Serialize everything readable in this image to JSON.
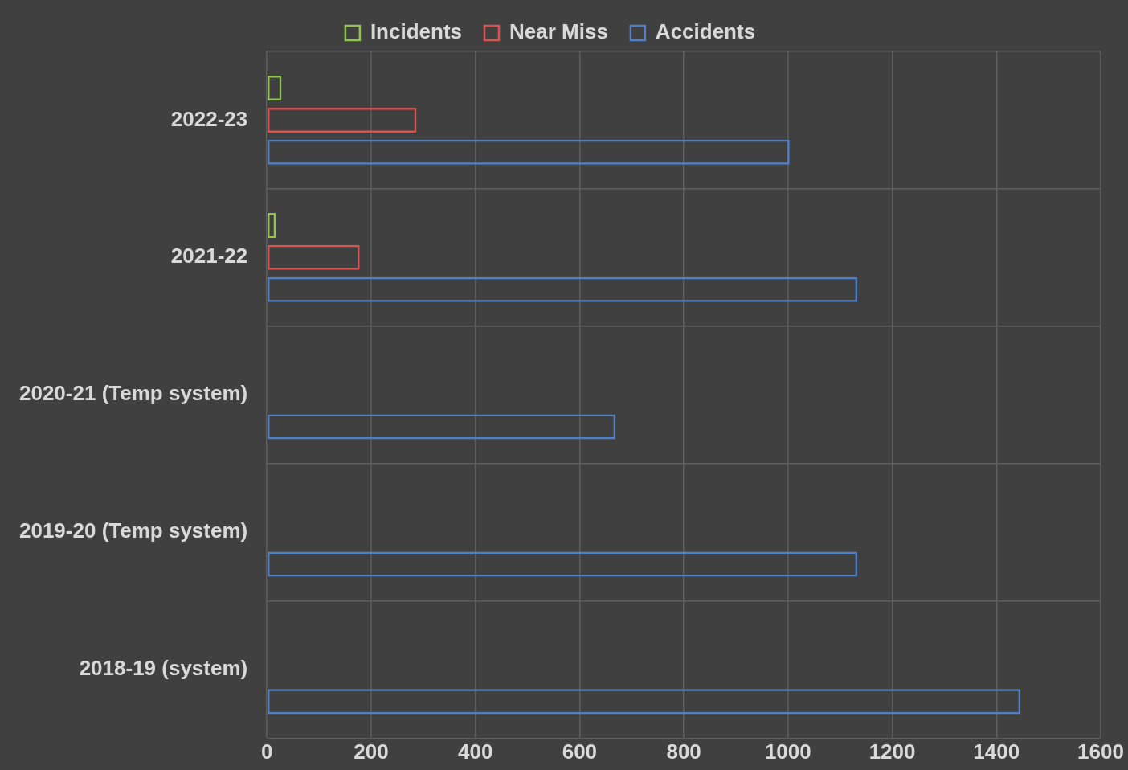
{
  "chart_data": {
    "type": "bar",
    "orientation": "horizontal",
    "categories": [
      "2022-23",
      "2021-22",
      "2020-21 (Temp system)",
      "2019-20 (Temp system)",
      "2018-19 (system)"
    ],
    "series": [
      {
        "name": "Incidents",
        "color": "#92c353",
        "values": [
          28,
          17,
          null,
          null,
          null
        ]
      },
      {
        "name": "Near Miss",
        "color": "#d9534f",
        "values": [
          287,
          178,
          null,
          null,
          null
        ]
      },
      {
        "name": "Accidents",
        "color": "#4f81c9",
        "values": [
          1003,
          1133,
          669,
          1133,
          1446
        ]
      }
    ],
    "xlim": [
      0,
      1600
    ],
    "xticks": [
      0,
      200,
      400,
      600,
      800,
      1000,
      1200,
      1400,
      1600
    ],
    "grid": true,
    "legend": "top"
  }
}
